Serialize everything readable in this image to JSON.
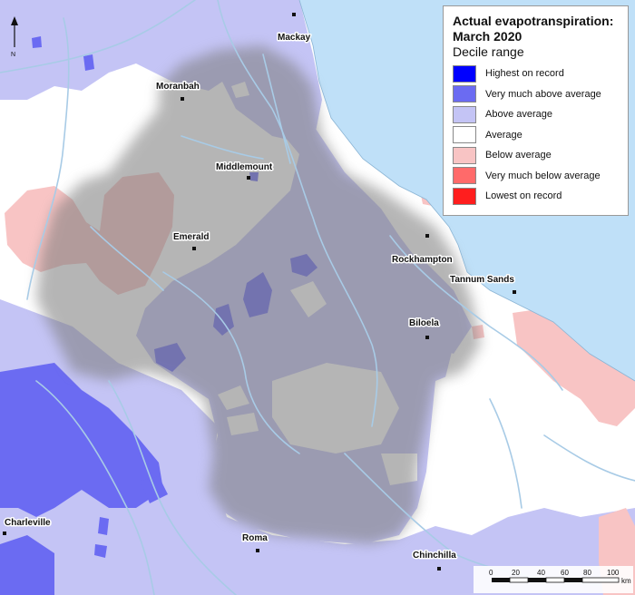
{
  "legend": {
    "title_line1": "Actual evapotranspiration:",
    "title_line2": "March 2020",
    "subtitle": "Decile range",
    "items": [
      {
        "label": "Highest on record",
        "color": "#0000ff"
      },
      {
        "label": "Very much above average",
        "color": "#6b6bf2"
      },
      {
        "label": "Above average",
        "color": "#c4c4f5"
      },
      {
        "label": "Average",
        "color": "#ffffff"
      },
      {
        "label": "Below average",
        "color": "#f8c4c4"
      },
      {
        "label": "Very much below average",
        "color": "#ff6a6a"
      },
      {
        "label": "Lowest on record",
        "color": "#ff1e1e"
      }
    ]
  },
  "towns": {
    "mackay": "Mackay",
    "moranbah": "Moranbah",
    "middlemount": "Middlemount",
    "emerald": "Emerald",
    "rockhampton": "Rockhampton",
    "tannum_sands": "Tannum Sands",
    "biloela": "Biloela",
    "charleville": "Charleville",
    "roma": "Roma",
    "chinchilla": "Chinchilla"
  },
  "scale_bar": {
    "ticks": [
      "0",
      "20",
      "40",
      "60",
      "80",
      "100"
    ],
    "unit": "km"
  },
  "north_arrow": {
    "label": "N"
  },
  "colors": {
    "ocean": "#bfe0f8",
    "river": "#a8cbe6",
    "outside_region": "#f2f2f2"
  }
}
